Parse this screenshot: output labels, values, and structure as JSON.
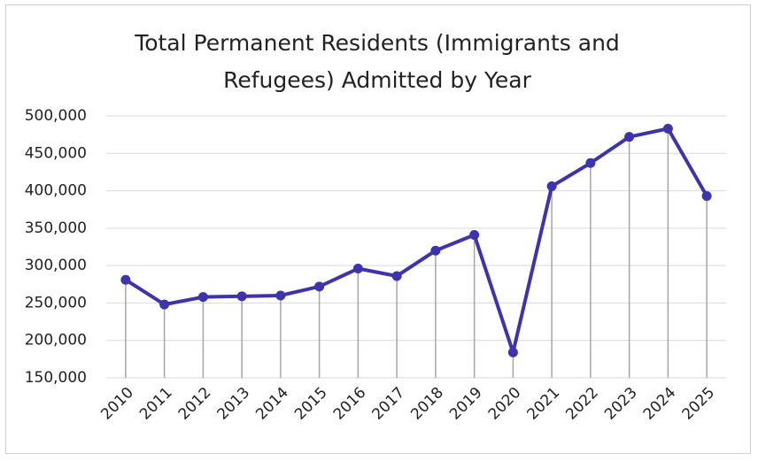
{
  "chart_data": {
    "type": "line",
    "title": "Total Permanent Residents (Immigrants and Refugees) Admitted by Year",
    "categories": [
      "2010",
      "2011",
      "2012",
      "2013",
      "2014",
      "2015",
      "2016",
      "2017",
      "2018",
      "2019",
      "2020",
      "2021",
      "2022",
      "2023",
      "2024",
      "2025"
    ],
    "values": [
      281000,
      248000,
      258000,
      259000,
      260000,
      272000,
      296000,
      286000,
      320000,
      341000,
      184000,
      406000,
      437000,
      472000,
      483000,
      393000
    ],
    "color": "#3d34ad",
    "ylim": [
      150000,
      500000
    ],
    "yticks": [
      {
        "value": 150000,
        "label": "150,000"
      },
      {
        "value": 200000,
        "label": "200,000"
      },
      {
        "value": 250000,
        "label": "250,000"
      },
      {
        "value": 300000,
        "label": "300,000"
      },
      {
        "value": 350000,
        "label": "350,000"
      },
      {
        "value": 400000,
        "label": "400,000"
      },
      {
        "value": 450000,
        "label": "450,000"
      },
      {
        "value": 500000,
        "label": "500,000"
      }
    ],
    "grid": true
  }
}
